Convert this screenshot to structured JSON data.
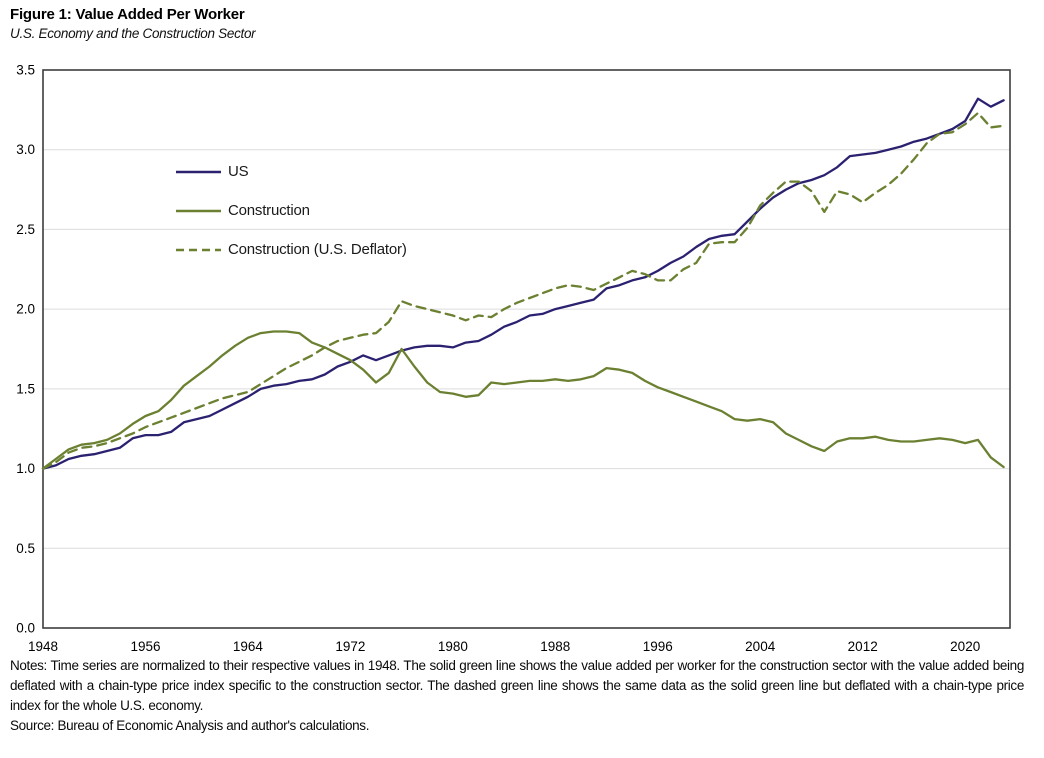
{
  "notes": {
    "text": "Notes: Time series are normalized to their respective values in 1948. The solid green line shows the value added per worker for the construction sector with the value added being deflated with a chain-type price index specific to the construction sector. The dashed green line shows the same data as the solid green line but deflated with a chain-type price index for the whole U.S. economy.",
    "source": "Source: Bureau of Economic Analysis and author's calculations."
  },
  "chart_data": {
    "type": "line",
    "title": "Figure 1: Value Added Per Worker",
    "subtitle": "U.S. Economy and the Construction Sector",
    "xlabel": "",
    "ylabel": "",
    "xlim": [
      1948,
      2023.5
    ],
    "ylim": [
      0,
      3.5
    ],
    "grid": "horizontal-light",
    "legend_position": "upper-left-inside",
    "xticks": [
      1948,
      1956,
      1964,
      1972,
      1980,
      1988,
      1996,
      2004,
      2012,
      2020
    ],
    "yticks": [
      "0.0",
      "0.5",
      "1.0",
      "1.5",
      "2.0",
      "2.5",
      "3.0",
      "3.5"
    ],
    "years": [
      1948,
      1949,
      1950,
      1951,
      1952,
      1953,
      1954,
      1955,
      1956,
      1957,
      1958,
      1959,
      1960,
      1961,
      1962,
      1963,
      1964,
      1965,
      1966,
      1967,
      1968,
      1969,
      1970,
      1971,
      1972,
      1973,
      1974,
      1975,
      1976,
      1977,
      1978,
      1979,
      1980,
      1981,
      1982,
      1983,
      1984,
      1985,
      1986,
      1987,
      1988,
      1989,
      1990,
      1991,
      1992,
      1993,
      1994,
      1995,
      1996,
      1997,
      1998,
      1999,
      2000,
      2001,
      2002,
      2003,
      2004,
      2005,
      2006,
      2007,
      2008,
      2009,
      2010,
      2011,
      2012,
      2013,
      2014,
      2015,
      2016,
      2017,
      2018,
      2019,
      2020,
      2021,
      2022,
      2023
    ],
    "series": [
      {
        "id": "us",
        "name": "US",
        "color": "#2b2171",
        "dash": null,
        "values": [
          1.0,
          1.02,
          1.06,
          1.08,
          1.09,
          1.11,
          1.13,
          1.19,
          1.21,
          1.21,
          1.23,
          1.29,
          1.31,
          1.33,
          1.37,
          1.41,
          1.45,
          1.5,
          1.52,
          1.53,
          1.55,
          1.56,
          1.59,
          1.64,
          1.67,
          1.71,
          1.68,
          1.71,
          1.74,
          1.76,
          1.77,
          1.77,
          1.76,
          1.79,
          1.8,
          1.84,
          1.89,
          1.92,
          1.96,
          1.97,
          2.0,
          2.02,
          2.04,
          2.06,
          2.13,
          2.15,
          2.18,
          2.2,
          2.24,
          2.29,
          2.33,
          2.39,
          2.44,
          2.46,
          2.47,
          2.55,
          2.63,
          2.7,
          2.75,
          2.79,
          2.81,
          2.84,
          2.89,
          2.96,
          2.97,
          2.98,
          3.0,
          3.02,
          3.05,
          3.07,
          3.1,
          3.13,
          3.18,
          3.32,
          3.27,
          3.31
        ]
      },
      {
        "id": "construction",
        "name": "Construction",
        "color": "#6b8031",
        "dash": null,
        "values": [
          1.0,
          1.06,
          1.12,
          1.15,
          1.16,
          1.18,
          1.22,
          1.28,
          1.33,
          1.36,
          1.43,
          1.52,
          1.58,
          1.64,
          1.71,
          1.77,
          1.82,
          1.85,
          1.86,
          1.86,
          1.85,
          1.79,
          1.76,
          1.72,
          1.68,
          1.62,
          1.54,
          1.6,
          1.75,
          1.64,
          1.54,
          1.48,
          1.47,
          1.45,
          1.46,
          1.54,
          1.53,
          1.54,
          1.55,
          1.55,
          1.56,
          1.55,
          1.56,
          1.58,
          1.63,
          1.62,
          1.6,
          1.55,
          1.51,
          1.48,
          1.45,
          1.42,
          1.39,
          1.36,
          1.31,
          1.3,
          1.31,
          1.29,
          1.22,
          1.18,
          1.14,
          1.11,
          1.17,
          1.19,
          1.19,
          1.2,
          1.18,
          1.17,
          1.17,
          1.18,
          1.19,
          1.18,
          1.16,
          1.18,
          1.07,
          1.01
        ]
      },
      {
        "id": "construction-us-deflator",
        "name": "Construction (U.S. Deflator)",
        "color": "#6b8031",
        "dash": "9 6",
        "values": [
          1.0,
          1.04,
          1.1,
          1.13,
          1.14,
          1.16,
          1.19,
          1.22,
          1.26,
          1.29,
          1.32,
          1.35,
          1.38,
          1.41,
          1.44,
          1.46,
          1.48,
          1.53,
          1.58,
          1.63,
          1.67,
          1.71,
          1.76,
          1.8,
          1.82,
          1.84,
          1.85,
          1.92,
          2.05,
          2.02,
          2.0,
          1.98,
          1.96,
          1.93,
          1.96,
          1.95,
          2.0,
          2.04,
          2.07,
          2.1,
          2.13,
          2.15,
          2.14,
          2.12,
          2.16,
          2.2,
          2.24,
          2.22,
          2.18,
          2.18,
          2.25,
          2.29,
          2.41,
          2.42,
          2.42,
          2.51,
          2.65,
          2.73,
          2.8,
          2.8,
          2.74,
          2.61,
          2.74,
          2.72,
          2.67,
          2.73,
          2.78,
          2.85,
          2.94,
          3.04,
          3.1,
          3.11,
          3.16,
          3.23,
          3.14,
          3.15
        ]
      }
    ]
  }
}
